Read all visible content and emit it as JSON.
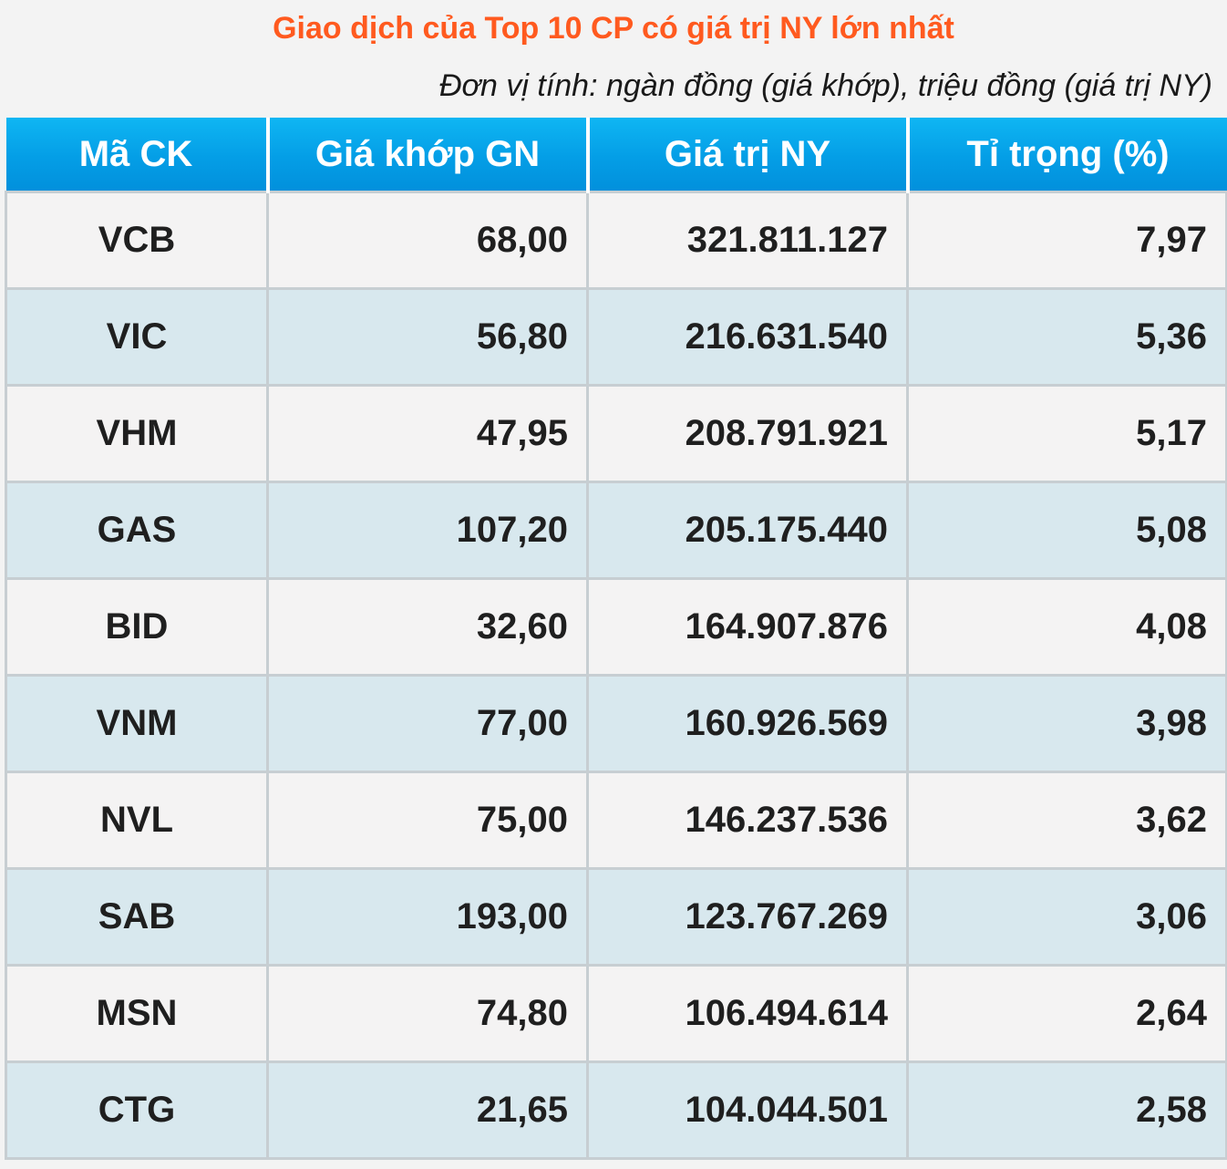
{
  "title": "Giao dịch của Top 10 CP có giá trị NY lớn nhất",
  "unit_note": "Đơn vị tính: ngàn đồng (giá khớp), triệu đồng (giá trị NY)",
  "colors": {
    "title": "#ff5a1f",
    "header_bg": "#049ee6",
    "row_odd": "#f4f3f3",
    "row_even": "#d8e8ee"
  },
  "chart_data": {
    "type": "table",
    "title": "Giao dịch của Top 10 CP có giá trị NY lớn nhất",
    "subtitle": "Đơn vị tính: ngàn đồng (giá khớp), triệu đồng (giá trị NY)",
    "columns": [
      "Mã CK",
      "Giá khớp GN",
      "Giá trị NY",
      "Tỉ trọng (%)"
    ],
    "rows": [
      [
        "VCB",
        "68,00",
        "321.811.127",
        "7,97"
      ],
      [
        "VIC",
        "56,80",
        "216.631.540",
        "5,36"
      ],
      [
        "VHM",
        "47,95",
        "208.791.921",
        "5,17"
      ],
      [
        "GAS",
        "107,20",
        "205.175.440",
        "5,08"
      ],
      [
        "BID",
        "32,60",
        "164.907.876",
        "4,08"
      ],
      [
        "VNM",
        "77,00",
        "160.926.569",
        "3,98"
      ],
      [
        "NVL",
        "75,00",
        "146.237.536",
        "3,62"
      ],
      [
        "SAB",
        "193,00",
        "123.767.269",
        "3,06"
      ],
      [
        "MSN",
        "74,80",
        "106.494.614",
        "2,64"
      ],
      [
        "CTG",
        "21,65",
        "104.044.501",
        "2,58"
      ]
    ]
  }
}
